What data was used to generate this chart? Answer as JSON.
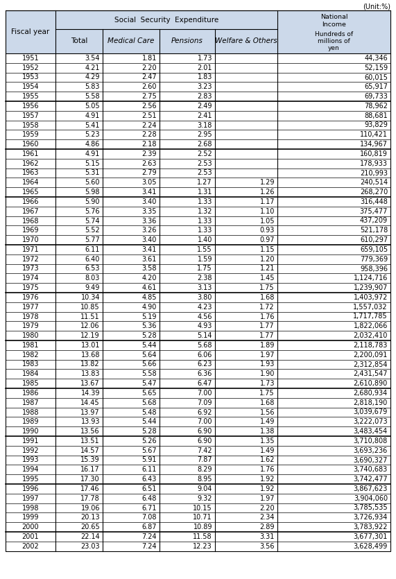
{
  "title_unit": "(Unit:%)",
  "header_sse": "Social  Security  Expenditure",
  "col0_label": "Fiscal year",
  "col1_label": "Total",
  "col2_label": "Medical Care",
  "col3_label": "Pensions",
  "col4_label": "Welfare & Others",
  "ni_label1": "National\nIncome",
  "ni_label2": "Hundreds of\nmillions of\nyen",
  "rows": [
    [
      "1951",
      "3.54",
      "1.81",
      "1.73",
      "",
      "44,346"
    ],
    [
      "1952",
      "4.21",
      "2.20",
      "2.01",
      "",
      "52,159"
    ],
    [
      "1953",
      "4.29",
      "2.47",
      "1.83",
      "",
      "60,015"
    ],
    [
      "1954",
      "5.83",
      "2.60",
      "3.23",
      "",
      "65,917"
    ],
    [
      "1955",
      "5.58",
      "2.75",
      "2.83",
      "",
      "69,733"
    ],
    [
      "1956",
      "5.05",
      "2.56",
      "2.49",
      "",
      "78,962"
    ],
    [
      "1957",
      "4.91",
      "2.51",
      "2.41",
      "",
      "88,681"
    ],
    [
      "1958",
      "5.41",
      "2.24",
      "3.18",
      "",
      "93,829"
    ],
    [
      "1959",
      "5.23",
      "2.28",
      "2.95",
      "",
      "110,421"
    ],
    [
      "1960",
      "4.86",
      "2.18",
      "2.68",
      "",
      "134,967"
    ],
    [
      "1961",
      "4.91",
      "2.39",
      "2.52",
      "",
      "160,819"
    ],
    [
      "1962",
      "5.15",
      "2.63",
      "2.53",
      "",
      "178,933"
    ],
    [
      "1963",
      "5.31",
      "2.79",
      "2.53",
      "",
      "210,993"
    ],
    [
      "1964",
      "5.60",
      "3.05",
      "1.27",
      "1.29",
      "240,514"
    ],
    [
      "1965",
      "5.98",
      "3.41",
      "1.31",
      "1.26",
      "268,270"
    ],
    [
      "1966",
      "5.90",
      "3.40",
      "1.33",
      "1.17",
      "316,448"
    ],
    [
      "1967",
      "5.76",
      "3.35",
      "1.32",
      "1.10",
      "375,477"
    ],
    [
      "1968",
      "5.74",
      "3.36",
      "1.33",
      "1.05",
      "437,209"
    ],
    [
      "1969",
      "5.52",
      "3.26",
      "1.33",
      "0.93",
      "521,178"
    ],
    [
      "1970",
      "5.77",
      "3.40",
      "1.40",
      "0.97",
      "610,297"
    ],
    [
      "1971",
      "6.11",
      "3.41",
      "1.55",
      "1.15",
      "659,105"
    ],
    [
      "1972",
      "6.40",
      "3.61",
      "1.59",
      "1.20",
      "779,369"
    ],
    [
      "1973",
      "6.53",
      "3.58",
      "1.75",
      "1.21",
      "958,396"
    ],
    [
      "1974",
      "8.03",
      "4.20",
      "2.38",
      "1.45",
      "1,124,716"
    ],
    [
      "1975",
      "9.49",
      "4.61",
      "3.13",
      "1.75",
      "1,239,907"
    ],
    [
      "1976",
      "10.34",
      "4.85",
      "3.80",
      "1.68",
      "1,403,972"
    ],
    [
      "1977",
      "10.85",
      "4.90",
      "4.23",
      "1.72",
      "1,557,032"
    ],
    [
      "1978",
      "11.51",
      "5.19",
      "4.56",
      "1.76",
      "1,717,785"
    ],
    [
      "1979",
      "12.06",
      "5.36",
      "4.93",
      "1.77",
      "1,822,066"
    ],
    [
      "1980",
      "12.19",
      "5.28",
      "5.14",
      "1.77",
      "2,032,410"
    ],
    [
      "1981",
      "13.01",
      "5.44",
      "5.68",
      "1.89",
      "2,118,783"
    ],
    [
      "1982",
      "13.68",
      "5.64",
      "6.06",
      "1.97",
      "2,200,091"
    ],
    [
      "1983",
      "13.82",
      "5.66",
      "6.23",
      "1.93",
      "2,312,854"
    ],
    [
      "1984",
      "13.83",
      "5.58",
      "6.36",
      "1.90",
      "2,431,547"
    ],
    [
      "1985",
      "13.67",
      "5.47",
      "6.47",
      "1.73",
      "2,610,890"
    ],
    [
      "1986",
      "14.39",
      "5.65",
      "7.00",
      "1.75",
      "2,680,934"
    ],
    [
      "1987",
      "14.45",
      "5.68",
      "7.09",
      "1.68",
      "2,818,190"
    ],
    [
      "1988",
      "13.97",
      "5.48",
      "6.92",
      "1.56",
      "3,039,679"
    ],
    [
      "1989",
      "13.93",
      "5.44",
      "7.00",
      "1.49",
      "3,222,073"
    ],
    [
      "1990",
      "13.56",
      "5.28",
      "6.90",
      "1.38",
      "3,483,454"
    ],
    [
      "1991",
      "13.51",
      "5.26",
      "6.90",
      "1.35",
      "3,710,808"
    ],
    [
      "1992",
      "14.57",
      "5.67",
      "7.42",
      "1.49",
      "3,693,236"
    ],
    [
      "1993",
      "15.39",
      "5.91",
      "7.87",
      "1.62",
      "3,690,327"
    ],
    [
      "1994",
      "16.17",
      "6.11",
      "8.29",
      "1.76",
      "3,740,683"
    ],
    [
      "1995",
      "17.30",
      "6.43",
      "8.95",
      "1.92",
      "3,742,477"
    ],
    [
      "1996",
      "17.46",
      "6.51",
      "9.04",
      "1.92",
      "3,867,623"
    ],
    [
      "1997",
      "17.78",
      "6.48",
      "9.32",
      "1.97",
      "3,904,060"
    ],
    [
      "1998",
      "19.06",
      "6.71",
      "10.15",
      "2.20",
      "3,785,535"
    ],
    [
      "1999",
      "20.13",
      "7.08",
      "10.71",
      "2.34",
      "3,726,934"
    ],
    [
      "2000",
      "20.65",
      "6.87",
      "10.89",
      "2.89",
      "3,783,922"
    ],
    [
      "2001",
      "22.14",
      "7.24",
      "11.58",
      "3.31",
      "3,677,301"
    ],
    [
      "2002",
      "23.03",
      "7.24",
      "12.23",
      "3.56",
      "3,628,499"
    ]
  ],
  "group_breaks_after": [
    4,
    9,
    14,
    19,
    24,
    29,
    34,
    39,
    44,
    49
  ],
  "bg_color": "#ccd9ea",
  "cell_bg": "#ffffff",
  "border_color": "#000000",
  "thin_lw": 0.5,
  "thick_lw": 1.2,
  "data_fontsize": 7.0,
  "header_fontsize": 7.5,
  "unit_fontsize": 7.0
}
